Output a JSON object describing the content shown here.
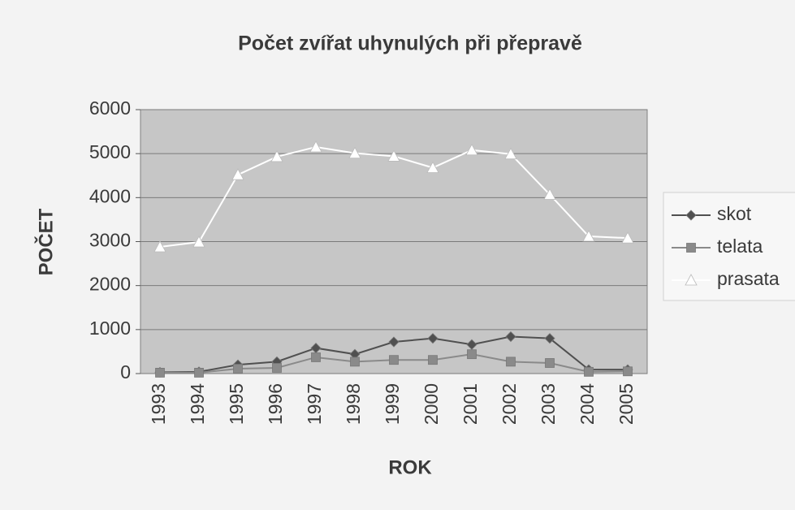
{
  "chart_data": {
    "type": "line",
    "title": "Počet zvířat uhynulých při přepravě",
    "xlabel": "ROK",
    "ylabel": "POČET",
    "categories": [
      "1993",
      "1994",
      "1995",
      "1996",
      "1997",
      "1998",
      "1999",
      "2000",
      "2001",
      "2002",
      "2003",
      "2004",
      "2005"
    ],
    "series": [
      {
        "name": "skot",
        "color": "#505050",
        "marker": "diamond",
        "values": [
          30,
          40,
          200,
          270,
          580,
          440,
          720,
          800,
          660,
          840,
          800,
          90,
          90
        ]
      },
      {
        "name": "telata",
        "color": "#8a8a8a",
        "marker": "square",
        "values": [
          20,
          20,
          110,
          130,
          370,
          270,
          310,
          310,
          440,
          270,
          240,
          40,
          50
        ]
      },
      {
        "name": "prasata",
        "color": "#ffffff",
        "marker": "triangle",
        "values": [
          2880,
          2990,
          4520,
          4930,
          5150,
          5010,
          4940,
          4680,
          5080,
          4990,
          4070,
          3120,
          3080
        ]
      }
    ],
    "ylim": [
      0,
      6000
    ],
    "yticks": [
      0,
      1000,
      2000,
      3000,
      4000,
      5000,
      6000
    ],
    "grid": true,
    "legend": "right"
  }
}
